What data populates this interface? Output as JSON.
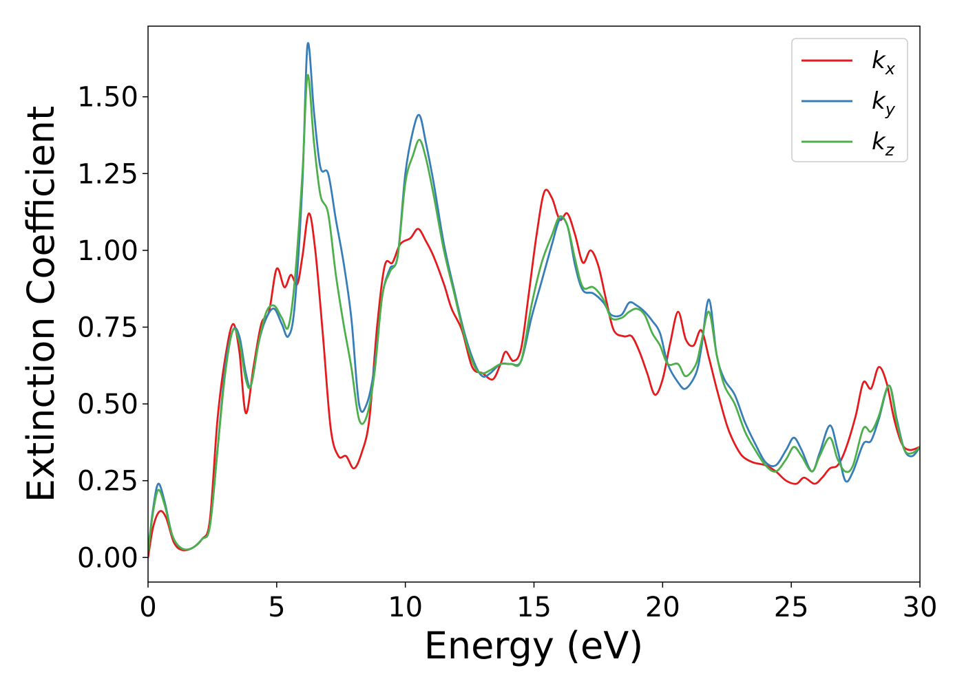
{
  "chart_data": {
    "type": "line",
    "xlabel": "Energy (eV)",
    "ylabel": "Extinction Coefficient",
    "xlim": [
      0,
      30
    ],
    "ylim": [
      -0.08,
      1.73
    ],
    "xticks": [
      0,
      5,
      10,
      15,
      20,
      25,
      30
    ],
    "xtick_labels": [
      "0",
      "5",
      "10",
      "15",
      "20",
      "25",
      "30"
    ],
    "yticks": [
      0.0,
      0.25,
      0.5,
      0.75,
      1.0,
      1.25,
      1.5
    ],
    "ytick_labels": [
      "0.00",
      "0.25",
      "0.50",
      "0.75",
      "1.00",
      "1.25",
      "1.50"
    ],
    "grid": false,
    "legend_position": "top-right",
    "series": [
      {
        "name": "k",
        "subscript": "x",
        "color": "#e41a1c",
        "points": [
          [
            0,
            0.0
          ],
          [
            0.2,
            0.1
          ],
          [
            0.45,
            0.15
          ],
          [
            0.7,
            0.13
          ],
          [
            1.0,
            0.05
          ],
          [
            1.3,
            0.025
          ],
          [
            1.7,
            0.03
          ],
          [
            2.1,
            0.06
          ],
          [
            2.4,
            0.12
          ],
          [
            2.7,
            0.45
          ],
          [
            3.0,
            0.65
          ],
          [
            3.3,
            0.76
          ],
          [
            3.55,
            0.67
          ],
          [
            3.8,
            0.47
          ],
          [
            4.1,
            0.62
          ],
          [
            4.4,
            0.76
          ],
          [
            4.7,
            0.8
          ],
          [
            5.0,
            0.94
          ],
          [
            5.3,
            0.88
          ],
          [
            5.55,
            0.92
          ],
          [
            5.8,
            0.89
          ],
          [
            6.0,
            0.98
          ],
          [
            6.25,
            1.12
          ],
          [
            6.5,
            1.0
          ],
          [
            6.8,
            0.72
          ],
          [
            7.1,
            0.42
          ],
          [
            7.4,
            0.33
          ],
          [
            7.7,
            0.33
          ],
          [
            8.0,
            0.29
          ],
          [
            8.3,
            0.34
          ],
          [
            8.6,
            0.45
          ],
          [
            8.9,
            0.75
          ],
          [
            9.2,
            0.95
          ],
          [
            9.5,
            0.96
          ],
          [
            9.8,
            1.02
          ],
          [
            10.2,
            1.04
          ],
          [
            10.5,
            1.07
          ],
          [
            10.8,
            1.03
          ],
          [
            11.1,
            0.98
          ],
          [
            11.5,
            0.89
          ],
          [
            11.8,
            0.81
          ],
          [
            12.2,
            0.74
          ],
          [
            12.6,
            0.62
          ],
          [
            13.0,
            0.6
          ],
          [
            13.4,
            0.58
          ],
          [
            13.7,
            0.63
          ],
          [
            13.9,
            0.67
          ],
          [
            14.2,
            0.64
          ],
          [
            14.5,
            0.68
          ],
          [
            14.8,
            0.86
          ],
          [
            15.1,
            1.05
          ],
          [
            15.4,
            1.19
          ],
          [
            15.7,
            1.17
          ],
          [
            16.0,
            1.1
          ],
          [
            16.3,
            1.12
          ],
          [
            16.6,
            1.05
          ],
          [
            16.9,
            0.96
          ],
          [
            17.2,
            1.0
          ],
          [
            17.5,
            0.95
          ],
          [
            17.8,
            0.84
          ],
          [
            18.1,
            0.74
          ],
          [
            18.5,
            0.72
          ],
          [
            18.8,
            0.72
          ],
          [
            19.1,
            0.67
          ],
          [
            19.4,
            0.6
          ],
          [
            19.7,
            0.53
          ],
          [
            20.0,
            0.58
          ],
          [
            20.3,
            0.7
          ],
          [
            20.6,
            0.8
          ],
          [
            20.9,
            0.71
          ],
          [
            21.2,
            0.69
          ],
          [
            21.5,
            0.74
          ],
          [
            21.8,
            0.65
          ],
          [
            22.1,
            0.55
          ],
          [
            22.5,
            0.43
          ],
          [
            22.8,
            0.37
          ],
          [
            23.1,
            0.33
          ],
          [
            23.5,
            0.31
          ],
          [
            24.0,
            0.3
          ],
          [
            24.4,
            0.28
          ],
          [
            24.8,
            0.25
          ],
          [
            25.2,
            0.24
          ],
          [
            25.5,
            0.26
          ],
          [
            25.9,
            0.24
          ],
          [
            26.2,
            0.26
          ],
          [
            26.5,
            0.29
          ],
          [
            26.8,
            0.3
          ],
          [
            27.1,
            0.35
          ],
          [
            27.5,
            0.46
          ],
          [
            27.8,
            0.57
          ],
          [
            28.1,
            0.55
          ],
          [
            28.4,
            0.62
          ],
          [
            28.7,
            0.57
          ],
          [
            29.0,
            0.45
          ],
          [
            29.3,
            0.37
          ],
          [
            29.6,
            0.35
          ],
          [
            30.0,
            0.36
          ]
        ]
      },
      {
        "name": "k",
        "subscript": "y",
        "color": "#377eb8",
        "points": [
          [
            0,
            0.02
          ],
          [
            0.2,
            0.16
          ],
          [
            0.4,
            0.24
          ],
          [
            0.65,
            0.18
          ],
          [
            0.95,
            0.07
          ],
          [
            1.3,
            0.03
          ],
          [
            1.7,
            0.03
          ],
          [
            2.1,
            0.06
          ],
          [
            2.4,
            0.1
          ],
          [
            2.7,
            0.35
          ],
          [
            3.0,
            0.62
          ],
          [
            3.3,
            0.74
          ],
          [
            3.55,
            0.72
          ],
          [
            3.8,
            0.6
          ],
          [
            4.0,
            0.56
          ],
          [
            4.3,
            0.7
          ],
          [
            4.6,
            0.78
          ],
          [
            4.9,
            0.81
          ],
          [
            5.2,
            0.76
          ],
          [
            5.45,
            0.72
          ],
          [
            5.7,
            0.82
          ],
          [
            6.0,
            1.22
          ],
          [
            6.2,
            1.67
          ],
          [
            6.45,
            1.45
          ],
          [
            6.7,
            1.27
          ],
          [
            7.0,
            1.25
          ],
          [
            7.3,
            1.1
          ],
          [
            7.6,
            0.96
          ],
          [
            7.9,
            0.78
          ],
          [
            8.2,
            0.5
          ],
          [
            8.5,
            0.5
          ],
          [
            8.8,
            0.62
          ],
          [
            9.1,
            0.85
          ],
          [
            9.4,
            0.94
          ],
          [
            9.7,
            0.98
          ],
          [
            10.0,
            1.25
          ],
          [
            10.3,
            1.39
          ],
          [
            10.55,
            1.44
          ],
          [
            10.8,
            1.35
          ],
          [
            11.1,
            1.22
          ],
          [
            11.5,
            1.02
          ],
          [
            11.9,
            0.87
          ],
          [
            12.3,
            0.73
          ],
          [
            12.7,
            0.63
          ],
          [
            13.0,
            0.59
          ],
          [
            13.3,
            0.6
          ],
          [
            13.7,
            0.63
          ],
          [
            14.1,
            0.63
          ],
          [
            14.5,
            0.64
          ],
          [
            14.9,
            0.78
          ],
          [
            15.3,
            0.9
          ],
          [
            15.7,
            1.02
          ],
          [
            16.0,
            1.1
          ],
          [
            16.3,
            1.08
          ],
          [
            16.6,
            0.95
          ],
          [
            16.9,
            0.87
          ],
          [
            17.3,
            0.86
          ],
          [
            17.7,
            0.83
          ],
          [
            18.0,
            0.79
          ],
          [
            18.4,
            0.79
          ],
          [
            18.7,
            0.83
          ],
          [
            19.0,
            0.82
          ],
          [
            19.3,
            0.8
          ],
          [
            19.6,
            0.77
          ],
          [
            19.9,
            0.73
          ],
          [
            20.2,
            0.63
          ],
          [
            20.6,
            0.57
          ],
          [
            20.9,
            0.55
          ],
          [
            21.3,
            0.6
          ],
          [
            21.5,
            0.68
          ],
          [
            21.8,
            0.84
          ],
          [
            22.1,
            0.66
          ],
          [
            22.4,
            0.58
          ],
          [
            22.8,
            0.53
          ],
          [
            23.2,
            0.44
          ],
          [
            23.6,
            0.37
          ],
          [
            24.0,
            0.31
          ],
          [
            24.4,
            0.3
          ],
          [
            24.8,
            0.35
          ],
          [
            25.1,
            0.39
          ],
          [
            25.4,
            0.35
          ],
          [
            25.8,
            0.28
          ],
          [
            26.1,
            0.34
          ],
          [
            26.5,
            0.43
          ],
          [
            26.8,
            0.35
          ],
          [
            27.1,
            0.25
          ],
          [
            27.4,
            0.28
          ],
          [
            27.8,
            0.37
          ],
          [
            28.1,
            0.38
          ],
          [
            28.4,
            0.45
          ],
          [
            28.8,
            0.56
          ],
          [
            29.1,
            0.45
          ],
          [
            29.4,
            0.35
          ],
          [
            29.7,
            0.33
          ],
          [
            30.0,
            0.36
          ]
        ]
      },
      {
        "name": "k",
        "subscript": "z",
        "color": "#4daf4a",
        "points": [
          [
            0,
            0.02
          ],
          [
            0.2,
            0.15
          ],
          [
            0.4,
            0.22
          ],
          [
            0.65,
            0.17
          ],
          [
            0.95,
            0.07
          ],
          [
            1.3,
            0.03
          ],
          [
            1.7,
            0.03
          ],
          [
            2.1,
            0.06
          ],
          [
            2.4,
            0.1
          ],
          [
            2.7,
            0.35
          ],
          [
            3.0,
            0.6
          ],
          [
            3.3,
            0.74
          ],
          [
            3.55,
            0.7
          ],
          [
            3.8,
            0.58
          ],
          [
            4.0,
            0.56
          ],
          [
            4.3,
            0.7
          ],
          [
            4.6,
            0.8
          ],
          [
            4.9,
            0.82
          ],
          [
            5.2,
            0.78
          ],
          [
            5.45,
            0.75
          ],
          [
            5.7,
            0.9
          ],
          [
            6.0,
            1.25
          ],
          [
            6.2,
            1.57
          ],
          [
            6.45,
            1.35
          ],
          [
            6.7,
            1.18
          ],
          [
            7.0,
            1.12
          ],
          [
            7.3,
            0.92
          ],
          [
            7.6,
            0.76
          ],
          [
            7.9,
            0.62
          ],
          [
            8.2,
            0.45
          ],
          [
            8.5,
            0.46
          ],
          [
            8.8,
            0.6
          ],
          [
            9.1,
            0.85
          ],
          [
            9.4,
            0.93
          ],
          [
            9.7,
            0.98
          ],
          [
            10.0,
            1.22
          ],
          [
            10.3,
            1.31
          ],
          [
            10.55,
            1.36
          ],
          [
            10.8,
            1.3
          ],
          [
            11.1,
            1.18
          ],
          [
            11.5,
            1.0
          ],
          [
            11.9,
            0.86
          ],
          [
            12.3,
            0.72
          ],
          [
            12.7,
            0.62
          ],
          [
            13.0,
            0.6
          ],
          [
            13.3,
            0.61
          ],
          [
            13.7,
            0.63
          ],
          [
            14.1,
            0.63
          ],
          [
            14.5,
            0.64
          ],
          [
            14.9,
            0.82
          ],
          [
            15.3,
            0.96
          ],
          [
            15.7,
            1.05
          ],
          [
            16.0,
            1.11
          ],
          [
            16.3,
            1.08
          ],
          [
            16.6,
            0.97
          ],
          [
            16.9,
            0.88
          ],
          [
            17.3,
            0.88
          ],
          [
            17.7,
            0.84
          ],
          [
            18.0,
            0.78
          ],
          [
            18.4,
            0.78
          ],
          [
            18.7,
            0.8
          ],
          [
            19.0,
            0.81
          ],
          [
            19.3,
            0.79
          ],
          [
            19.6,
            0.73
          ],
          [
            19.9,
            0.69
          ],
          [
            20.2,
            0.63
          ],
          [
            20.6,
            0.63
          ],
          [
            20.9,
            0.59
          ],
          [
            21.3,
            0.63
          ],
          [
            21.5,
            0.7
          ],
          [
            21.8,
            0.8
          ],
          [
            22.1,
            0.66
          ],
          [
            22.4,
            0.56
          ],
          [
            22.8,
            0.5
          ],
          [
            23.2,
            0.41
          ],
          [
            23.6,
            0.35
          ],
          [
            24.0,
            0.3
          ],
          [
            24.4,
            0.28
          ],
          [
            24.8,
            0.32
          ],
          [
            25.1,
            0.36
          ],
          [
            25.4,
            0.33
          ],
          [
            25.8,
            0.28
          ],
          [
            26.1,
            0.33
          ],
          [
            26.5,
            0.39
          ],
          [
            26.8,
            0.32
          ],
          [
            27.1,
            0.28
          ],
          [
            27.4,
            0.3
          ],
          [
            27.8,
            0.42
          ],
          [
            28.1,
            0.41
          ],
          [
            28.4,
            0.46
          ],
          [
            28.8,
            0.56
          ],
          [
            29.1,
            0.44
          ],
          [
            29.4,
            0.35
          ],
          [
            29.7,
            0.34
          ],
          [
            30.0,
            0.36
          ]
        ]
      }
    ]
  }
}
